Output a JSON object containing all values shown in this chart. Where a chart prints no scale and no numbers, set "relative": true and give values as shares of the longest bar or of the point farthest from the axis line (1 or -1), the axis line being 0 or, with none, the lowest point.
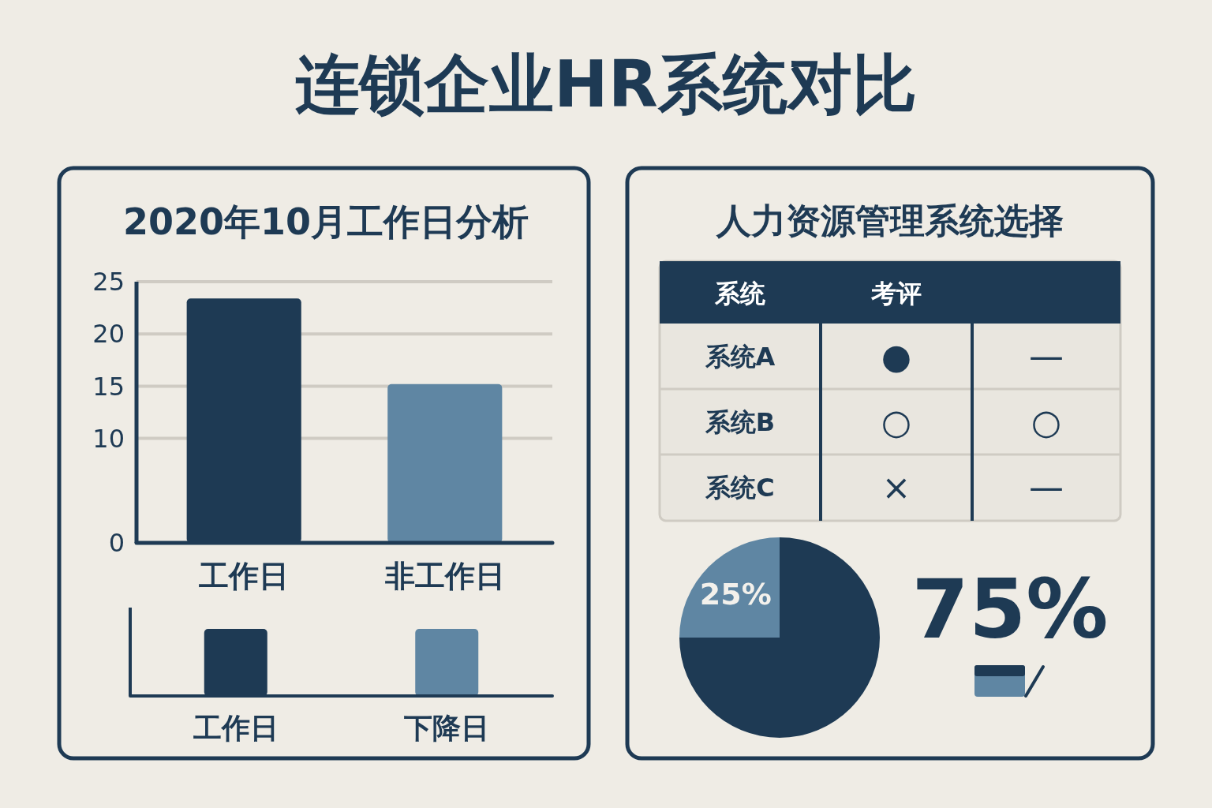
{
  "chart_data": [
    {
      "type": "other",
      "title": "连锁企业HR系统对比"
    },
    {
      "type": "bar",
      "title": "2020年10月工作日分析",
      "categories": [
        "工作日",
        "非工作日"
      ],
      "colors": [
        "#1e3a54",
        "#5f86a3"
      ],
      "values": [
        23.4,
        15.2
      ],
      "ylim": [
        0,
        25
      ],
      "yticks": [
        0,
        10,
        15,
        20,
        25
      ],
      "grid": "y"
    },
    {
      "type": "bar",
      "relative": true,
      "categories": [
        "工作日",
        "下降日"
      ],
      "colors": [
        "#1e3a54",
        "#5f86a3"
      ],
      "values": [
        1,
        1
      ]
    },
    {
      "type": "other",
      "title": "人力资源管理系统选择",
      "ylabel": "系统",
      "categories": [
        "考评",
        null
      ],
      "y_categories": [
        "系统A",
        "系统B",
        "系统C"
      ],
      "cell_labels": [
        [
          "●",
          "—"
        ],
        [
          "○",
          "○"
        ],
        [
          "×",
          "—"
        ]
      ]
    },
    {
      "type": "pie",
      "categories": [
        null,
        null
      ],
      "values": [
        75,
        25
      ],
      "colors": [
        "#1e3a54",
        "#5f86a3"
      ],
      "value_labels": [
        "75%",
        "25%"
      ]
    }
  ]
}
